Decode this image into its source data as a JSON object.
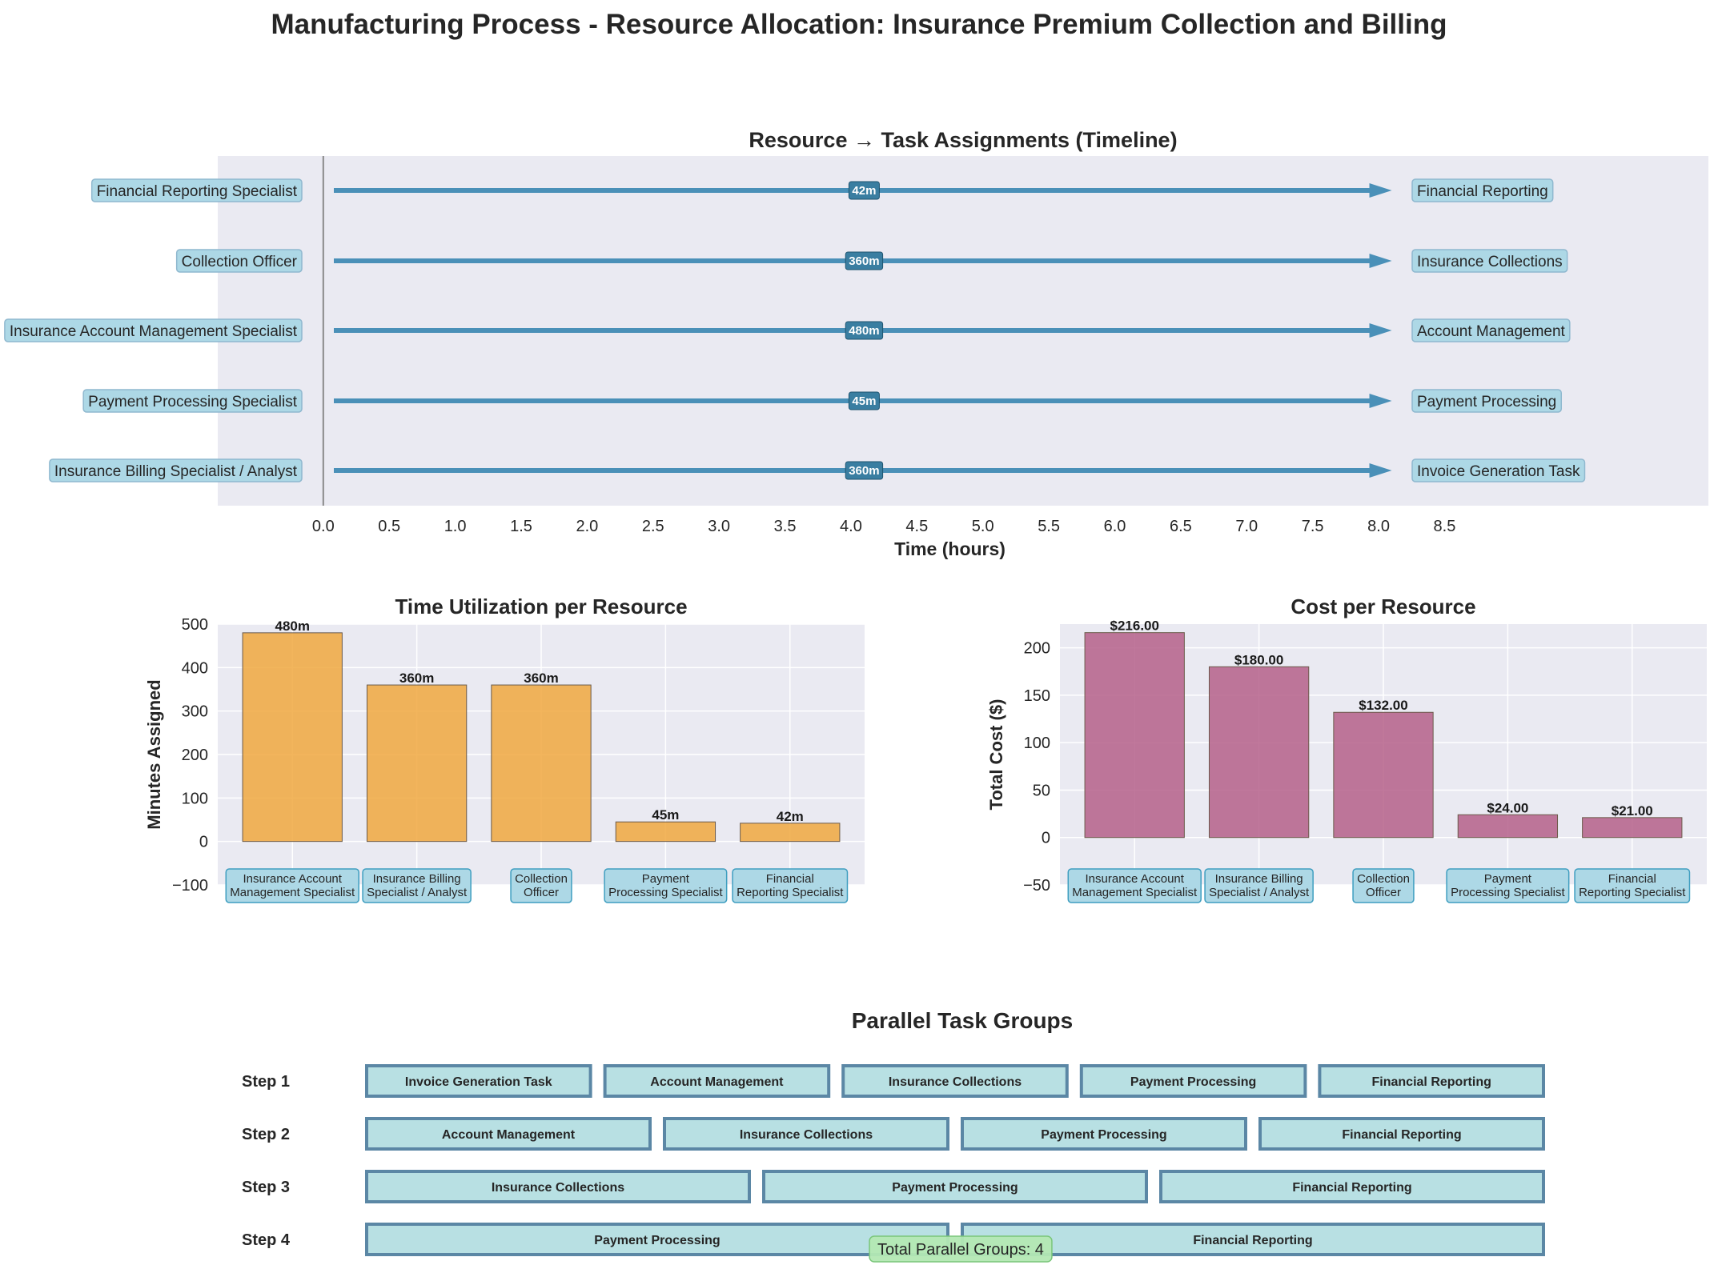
{
  "title": "Manufacturing Process - Resource Allocation: Insurance Premium Collection and Billing",
  "colors": {
    "panel_bg": "#eaeaf2",
    "arrow": "#4a90b8",
    "duration_badge": "#3a7ea1",
    "label_box": "#add8e6",
    "label_box_border": "#8fb8cf",
    "time_bar": "#f0a840",
    "cost_bar": "#b5608a",
    "step_box": "#b8e0e3",
    "step_box_border": "#5b87a5",
    "total_badge": "#b3e8b3",
    "total_badge_border": "#7ac67a",
    "tick_box_border": "#3f9ec0"
  },
  "chart_data": [
    {
      "type": "timeline",
      "title": "Resource → Task Assignments (Timeline)",
      "xlabel": "Time (hours)",
      "xlim": [
        -0.8,
        10.5
      ],
      "xticks": [
        "0.0",
        "0.5",
        "1.0",
        "1.5",
        "2.0",
        "2.5",
        "3.0",
        "3.5",
        "4.0",
        "4.5",
        "5.0",
        "5.5",
        "6.0",
        "6.5",
        "7.0",
        "7.5",
        "8.0",
        "8.5"
      ],
      "arrow_start": 0.08,
      "arrow_end": 8.1,
      "rows": [
        {
          "resource": "Financial Reporting Specialist",
          "task": "Financial Reporting",
          "duration_label": "42m"
        },
        {
          "resource": "Collection Officer",
          "task": "Insurance Collections",
          "duration_label": "360m"
        },
        {
          "resource": "Insurance Account Management Specialist",
          "task": "Account Management",
          "duration_label": "480m"
        },
        {
          "resource": "Payment Processing Specialist",
          "task": "Payment Processing",
          "duration_label": "45m"
        },
        {
          "resource": "Insurance Billing Specialist / Analyst",
          "task": "Invoice Generation Task",
          "duration_label": "360m"
        }
      ]
    },
    {
      "type": "bar",
      "title": "Time Utilization per Resource",
      "xlabel": "",
      "ylabel": "Minutes Assigned",
      "ylim": [
        -100,
        500
      ],
      "yticks": [
        -100,
        0,
        100,
        200,
        300,
        400,
        500
      ],
      "ytick_labels": [
        "−100",
        "0",
        "100",
        "200",
        "300",
        "400",
        "500"
      ],
      "categories": [
        [
          "Insurance Account",
          "Management Specialist"
        ],
        [
          "Insurance Billing",
          "Specialist / Analyst"
        ],
        [
          "Collection",
          "Officer"
        ],
        [
          "Payment",
          "Processing Specialist"
        ],
        [
          "Financial",
          "Reporting Specialist"
        ]
      ],
      "values": [
        480,
        360,
        360,
        45,
        42
      ],
      "value_labels": [
        "480m",
        "360m",
        "360m",
        "45m",
        "42m"
      ]
    },
    {
      "type": "bar",
      "title": "Cost per Resource",
      "xlabel": "",
      "ylabel": "Total Cost ($)",
      "ylim": [
        -50,
        225
      ],
      "yticks": [
        -50,
        0,
        50,
        100,
        150,
        200
      ],
      "ytick_labels": [
        "−50",
        "0",
        "50",
        "100",
        "150",
        "200"
      ],
      "categories": [
        [
          "Insurance Account",
          "Management Specialist"
        ],
        [
          "Insurance Billing",
          "Specialist / Analyst"
        ],
        [
          "Collection",
          "Officer"
        ],
        [
          "Payment",
          "Processing Specialist"
        ],
        [
          "Financial",
          "Reporting Specialist"
        ]
      ],
      "values": [
        216.0,
        180.0,
        132.0,
        24.0,
        21.0
      ],
      "value_labels": [
        "$216.00",
        "$180.00",
        "$132.00",
        "$24.00",
        "$21.00"
      ]
    },
    {
      "type": "table",
      "title": "Parallel Task Groups",
      "steps": [
        {
          "label": "Step 1",
          "tasks": [
            "Invoice Generation Task",
            "Account Management",
            "Insurance Collections",
            "Payment Processing",
            "Financial Reporting"
          ]
        },
        {
          "label": "Step 2",
          "tasks": [
            "Account Management",
            "Insurance Collections",
            "Payment Processing",
            "Financial Reporting"
          ]
        },
        {
          "label": "Step 3",
          "tasks": [
            "Insurance Collections",
            "Payment Processing",
            "Financial Reporting"
          ]
        },
        {
          "label": "Step 4",
          "tasks": [
            "Payment Processing",
            "Financial Reporting"
          ]
        }
      ],
      "total_label": "Total Parallel Groups: 4"
    }
  ]
}
